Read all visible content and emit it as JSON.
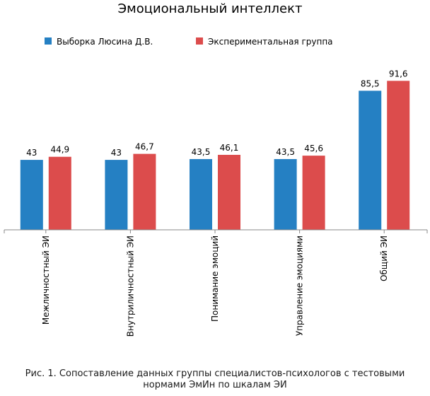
{
  "chart_data": {
    "type": "bar",
    "title": "Эмоциональный интеллект",
    "categories": [
      "Межличностный ЭИ",
      "Внутриличностный ЭИ",
      "Понимание эмоций",
      "Управление эмоциями",
      "Общий ЭИ"
    ],
    "series": [
      {
        "name": "Выборка Люсина Д.В.",
        "color": "#2580c3",
        "values": [
          43,
          43,
          43.5,
          43.5,
          85.5
        ],
        "labels": [
          "43",
          "43",
          "43,5",
          "43,5",
          "85,5"
        ]
      },
      {
        "name": "Экспериментальная группа",
        "color": "#dc4c4c",
        "values": [
          44.9,
          46.7,
          46.1,
          45.6,
          91.6
        ],
        "labels": [
          "44,9",
          "46,7",
          "46,1",
          "45,6",
          "91,6"
        ]
      }
    ],
    "xlabel": "",
    "ylabel": "",
    "ylim": [
      0,
      100
    ],
    "grid": false,
    "legend": "top"
  },
  "caption": {
    "line1": "Рис. 1. Сопоставление данных группы специалистов-психологов с тестовыми",
    "line2": "нормами ЭмИн по шкалам ЭИ"
  }
}
